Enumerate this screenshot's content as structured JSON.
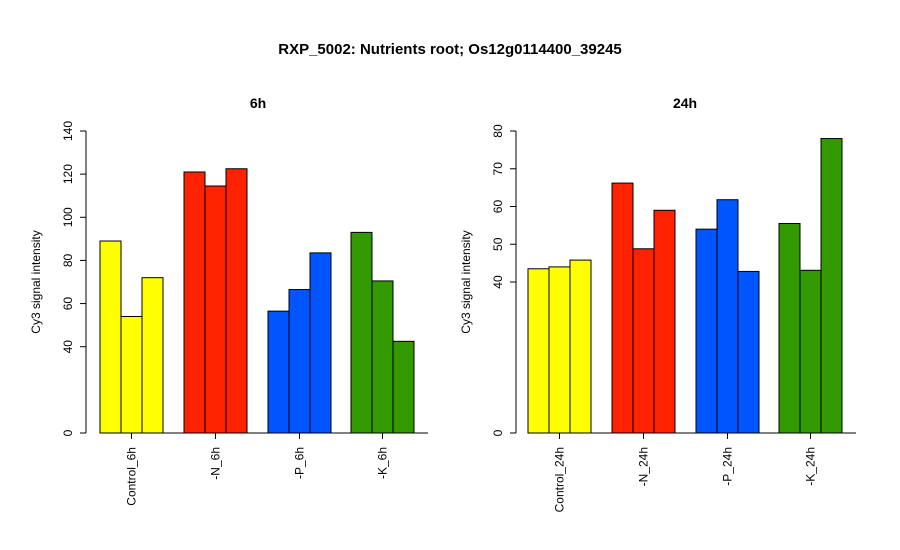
{
  "title": "RXP_5002: Nutrients root; Os12g0114400_39245",
  "chart_data": [
    {
      "type": "bar",
      "title": "6h",
      "ylabel": "Cy3 signal intensity",
      "xlabel": "",
      "ylim": [
        0,
        140
      ],
      "yticks": [
        0,
        40,
        60,
        80,
        100,
        120,
        140
      ],
      "categories": [
        "Control_6h",
        "-N_6h",
        "-P_6h",
        "-K_6h"
      ],
      "colors": [
        "#FFFF00",
        "#FF2200",
        "#0055FF",
        "#339900"
      ],
      "groups": [
        {
          "label": "Control_6h",
          "values": [
            89,
            54,
            72
          ]
        },
        {
          "label": "-N_6h",
          "values": [
            121,
            114.5,
            122.5
          ]
        },
        {
          "label": "-P_6h",
          "values": [
            56.5,
            66.5,
            83.5
          ]
        },
        {
          "label": "-K_6h",
          "values": [
            93,
            70.5,
            42.5
          ]
        }
      ]
    },
    {
      "type": "bar",
      "title": "24h",
      "ylabel": "Cy3 signal intensity",
      "xlabel": "",
      "ylim": [
        0,
        80
      ],
      "yticks": [
        0,
        40,
        50,
        60,
        70,
        80
      ],
      "categories": [
        "Control_24h",
        "-N_24h",
        "-P_24h",
        "-K_24h"
      ],
      "colors": [
        "#FFFF00",
        "#FF2200",
        "#0055FF",
        "#339900"
      ],
      "groups": [
        {
          "label": "Control_24h",
          "values": [
            43.5,
            44,
            45.8
          ]
        },
        {
          "label": "-N_24h",
          "values": [
            66.2,
            48.8,
            59
          ]
        },
        {
          "label": "-P_24h",
          "values": [
            54,
            61.8,
            42.8
          ]
        },
        {
          "label": "-K_24h",
          "values": [
            55.5,
            43.1,
            78
          ]
        }
      ]
    }
  ]
}
